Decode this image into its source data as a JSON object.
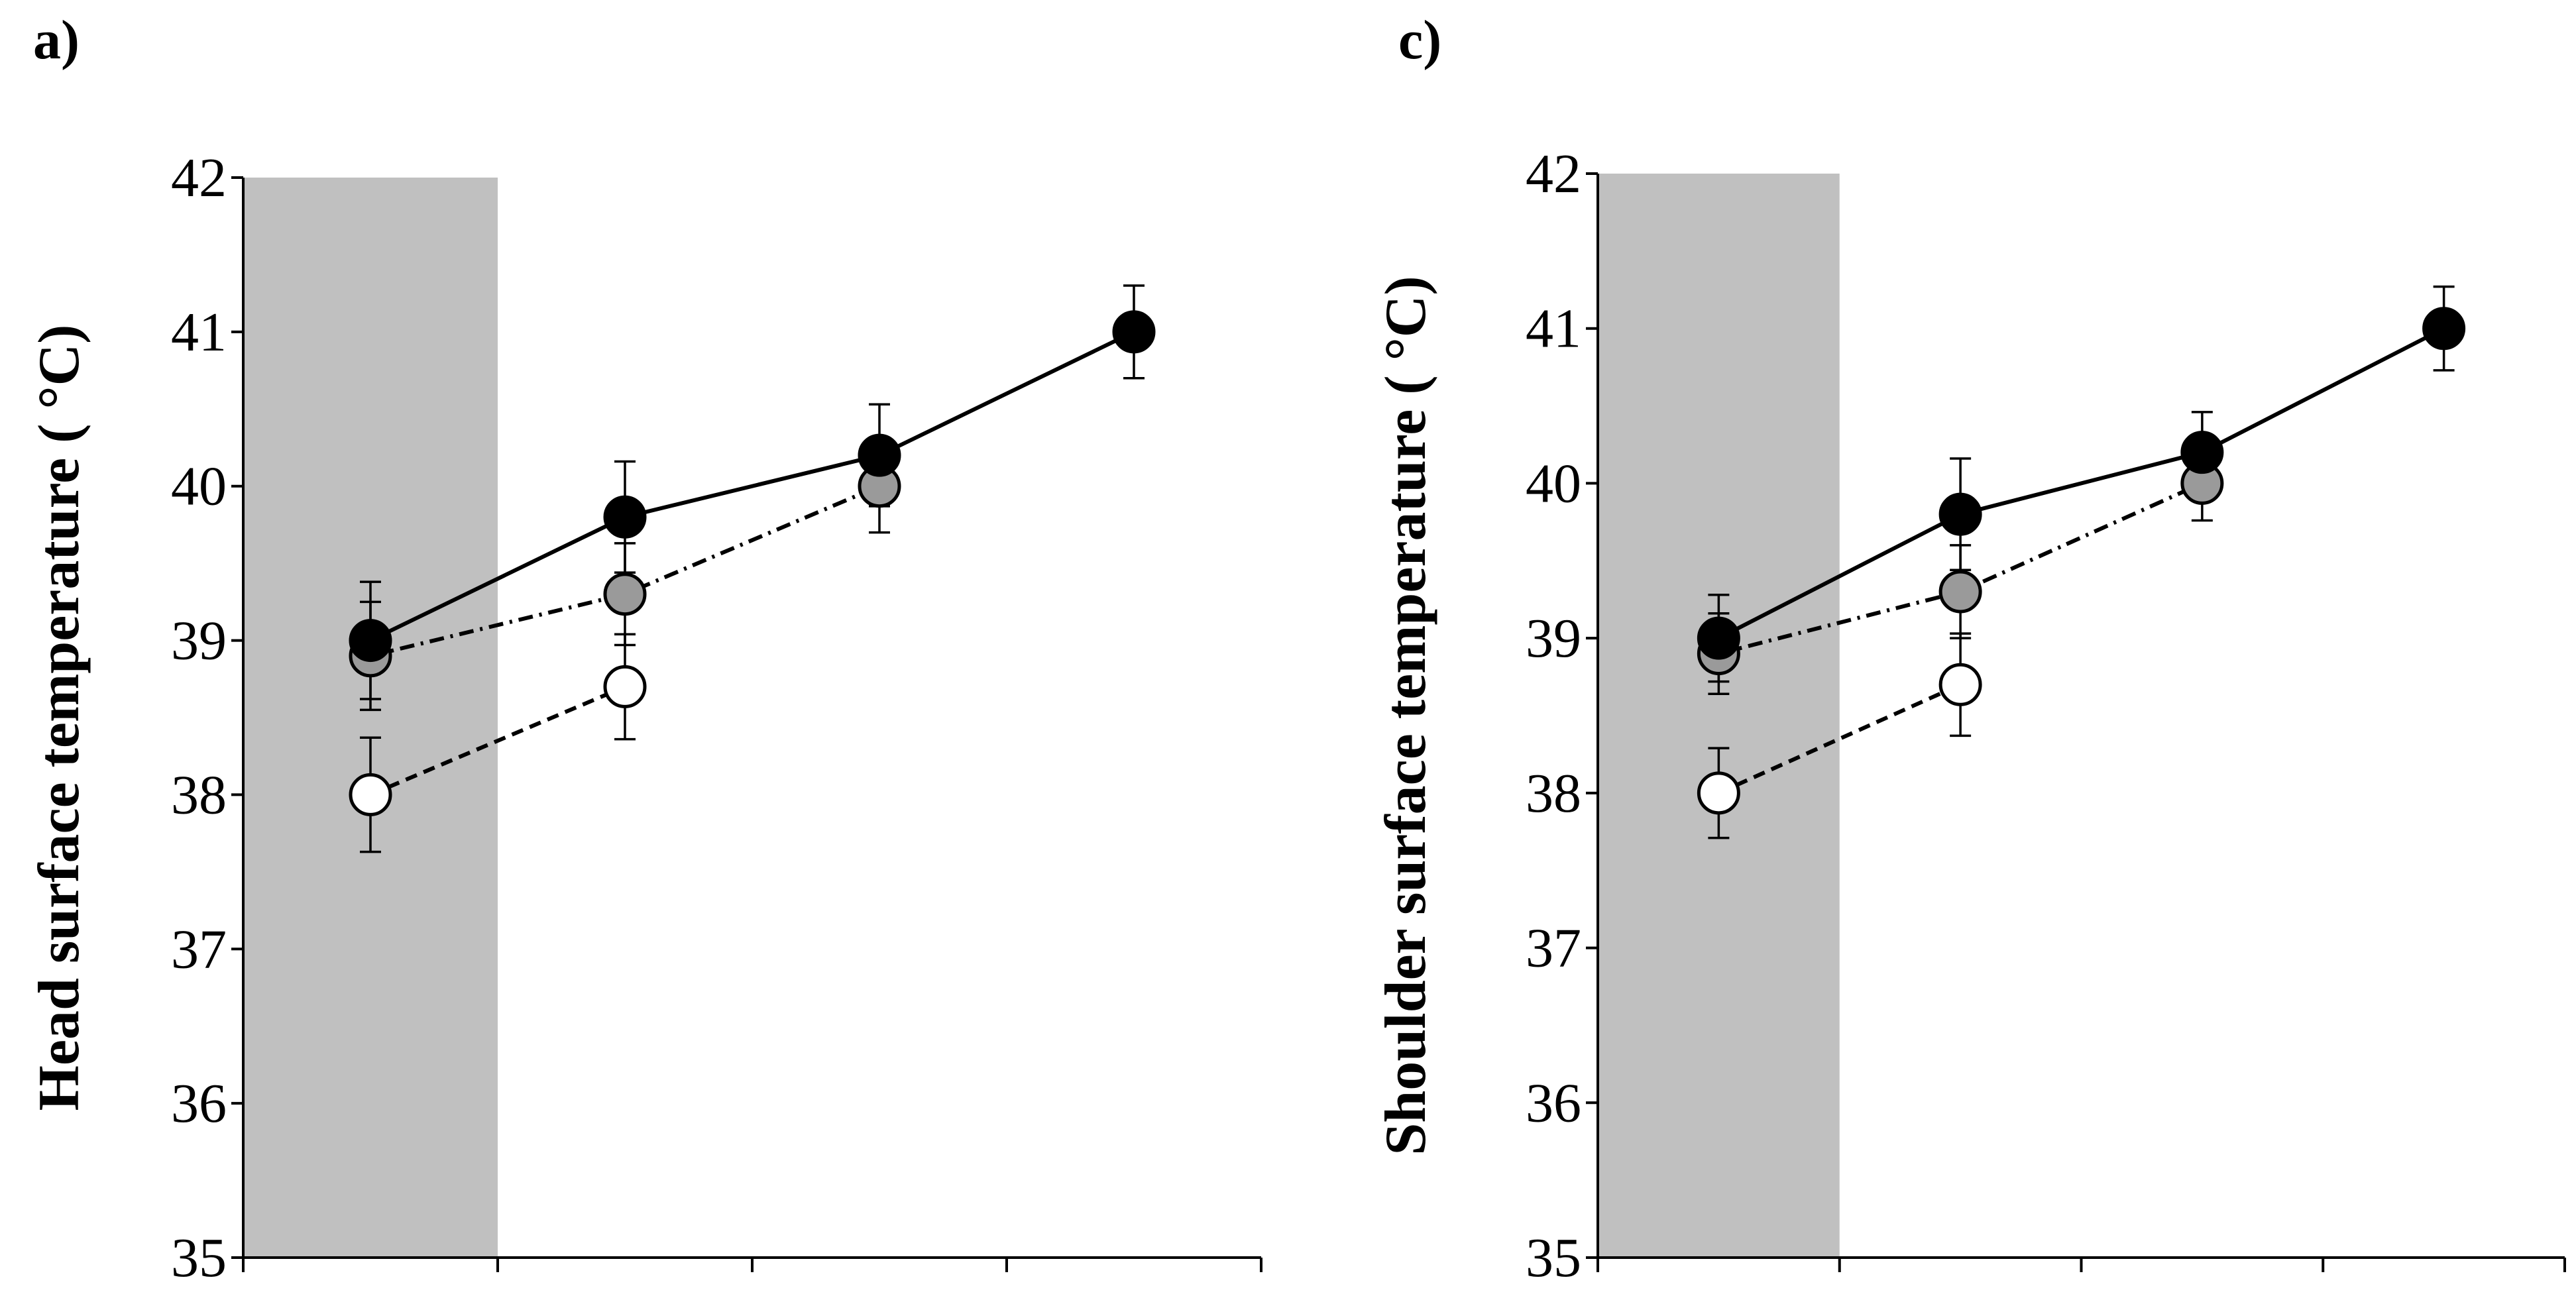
{
  "chart_data": [
    {
      "type": "line",
      "panel_label": "a)",
      "title": "",
      "xlabel": "",
      "ylabel": "Head surface temperature ( °C)",
      "ylim": [
        35,
        42
      ],
      "y_ticks": [
        "35",
        "36",
        "37",
        "38",
        "39",
        "40",
        "41",
        "42"
      ],
      "x_slots": 4,
      "shaded_slots": [
        0,
        1
      ],
      "shade_color": "#c0c0c0",
      "series": [
        {
          "name": "black",
          "marker_fill": "#000000",
          "line_style": "solid",
          "x": [
            0.5,
            1.5,
            2.5,
            3.5
          ],
          "values": [
            39.0,
            39.8,
            40.2,
            41.0
          ],
          "err": [
            0.38,
            0.36,
            0.33,
            0.3
          ]
        },
        {
          "name": "grey",
          "marker_fill": "#9a9a9a",
          "line_style": "dashdot",
          "x": [
            0.5,
            1.5,
            2.5
          ],
          "values": [
            38.9,
            39.3,
            40.0
          ],
          "err": [
            0.35,
            0.33,
            0.3
          ]
        },
        {
          "name": "white",
          "marker_fill": "#ffffff",
          "line_style": "dashed",
          "x": [
            0.5,
            1.5
          ],
          "values": [
            38.0,
            38.7
          ],
          "err": [
            0.37,
            0.34
          ]
        }
      ]
    },
    {
      "type": "line",
      "panel_label": "c)",
      "title": "",
      "xlabel": "",
      "ylabel": "Shoulder surface temperature ( °C)",
      "ylim": [
        35,
        42
      ],
      "y_ticks": [
        "35",
        "36",
        "37",
        "38",
        "39",
        "40",
        "41",
        "42"
      ],
      "x_slots": 4,
      "shaded_slots": [
        0,
        1
      ],
      "shade_color": "#c0c0c0",
      "series": [
        {
          "name": "black",
          "marker_fill": "#000000",
          "line_style": "solid",
          "x": [
            0.5,
            1.5,
            2.5,
            3.5
          ],
          "values": [
            39.0,
            39.8,
            40.2,
            41.0
          ],
          "err": [
            0.28,
            0.36,
            0.26,
            0.27
          ]
        },
        {
          "name": "grey",
          "marker_fill": "#9a9a9a",
          "line_style": "dashdot",
          "x": [
            0.5,
            1.5,
            2.5
          ],
          "values": [
            38.9,
            39.3,
            40.0
          ],
          "err": [
            0.26,
            0.3,
            0.24
          ]
        },
        {
          "name": "white",
          "marker_fill": "#ffffff",
          "line_style": "dashed",
          "x": [
            0.5,
            1.5
          ],
          "values": [
            38.0,
            38.7
          ],
          "err": [
            0.29,
            0.33
          ]
        }
      ]
    }
  ]
}
